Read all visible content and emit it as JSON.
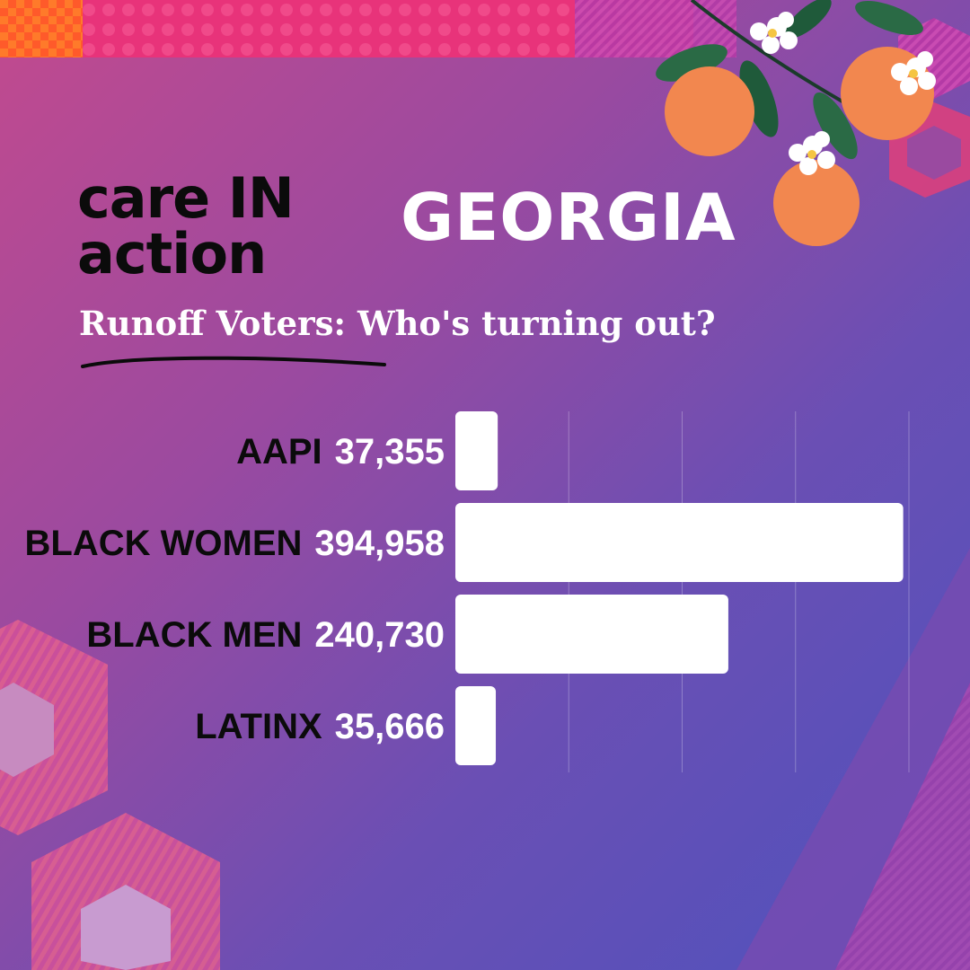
{
  "logo": {
    "line1": "care IN",
    "line2": "action"
  },
  "state_title": "GEORGIA",
  "subtitle": "Runoff Voters: Who's turning out?",
  "colors": {
    "background_start": "#c24a8e",
    "background_end": "#4e52bd",
    "bar": "#ffffff",
    "label_text": "#0b0b0b",
    "value_text": "#ffffff",
    "orange_fruit": "#f2874f",
    "leaf": "#1f5a3a"
  },
  "icons": [
    "orange-fruit-icon",
    "orange-blossom-icon",
    "leaf-icon",
    "hexagon-pattern-icon"
  ],
  "chart_data": {
    "type": "bar",
    "orientation": "horizontal",
    "categories": [
      "AAPI",
      "BLACK WOMEN",
      "BLACK MEN",
      "LATINX"
    ],
    "value_labels": [
      "37,355",
      "394,958",
      "240,730",
      "35,666"
    ],
    "values": [
      37355,
      394958,
      240730,
      35666
    ],
    "xlim": [
      0,
      400000
    ],
    "grid": true,
    "legend": "none"
  }
}
